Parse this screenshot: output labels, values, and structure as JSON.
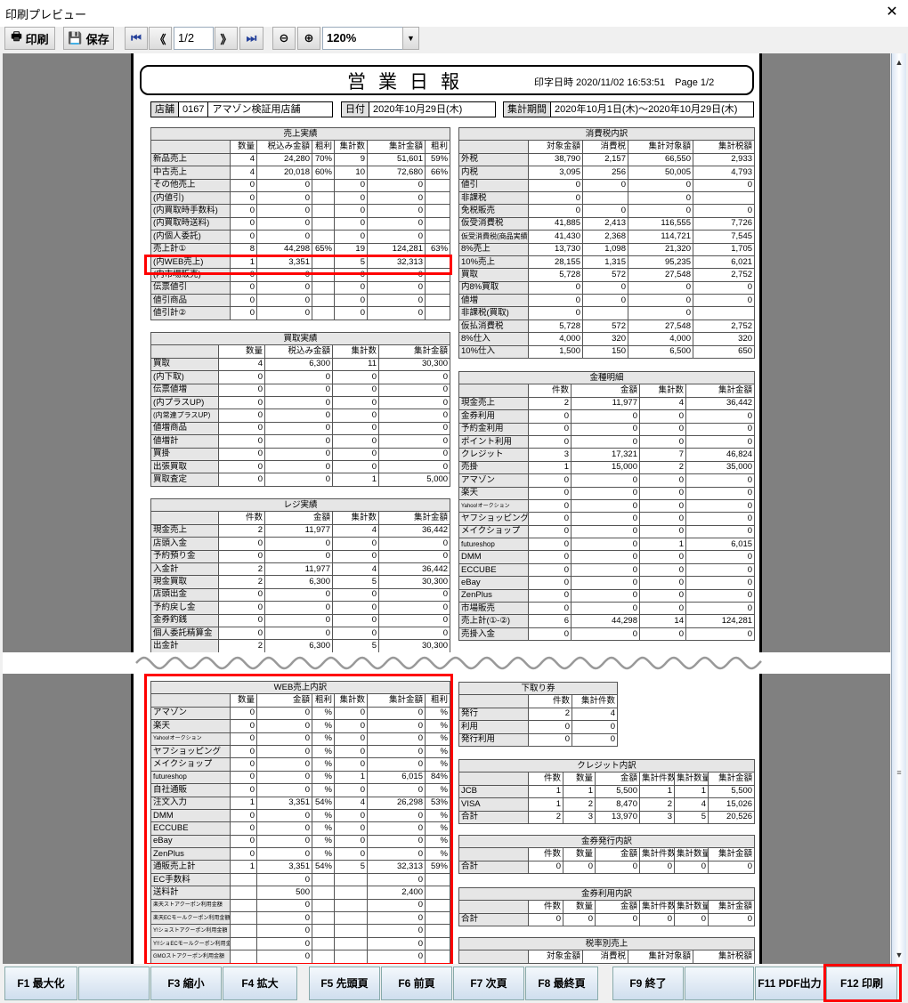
{
  "window": {
    "title": "印刷プレビュー",
    "close_icon": "close-icon"
  },
  "toolbar": {
    "print": "印刷",
    "save": "保存",
    "page": "1/2",
    "zoom": "120%"
  },
  "report": {
    "title": "営業日報",
    "printed": "印字日時 2020/11/02 16:53:51　Page 1/2",
    "store_label": "店舗",
    "store_code": "0167",
    "store_name": "アマゾン検証用店舗",
    "date_label": "日付",
    "date": "2020年10月29日(木)",
    "period_label": "集計期間",
    "period": "2020年10月1日(木)～2020年10月29日(木)"
  },
  "tables": {
    "sales": {
      "title": "売上実績",
      "headers": [
        "",
        "数量",
        "税込み金額",
        "粗利",
        "集計数",
        "集計金額",
        "粗利"
      ],
      "rows": [
        [
          "新品売上",
          "4",
          "24,280",
          "70%",
          "9",
          "51,601",
          "59%"
        ],
        [
          "中古売上",
          "4",
          "20,018",
          "60%",
          "10",
          "72,680",
          "66%"
        ],
        [
          "その他売上",
          "0",
          "0",
          "",
          "0",
          "0",
          ""
        ],
        [
          "(内値引)",
          "0",
          "0",
          "",
          "0",
          "0",
          ""
        ],
        [
          "(内買取時手数料)",
          "0",
          "0",
          "",
          "0",
          "0",
          ""
        ],
        [
          "(内買取時送料)",
          "0",
          "0",
          "",
          "0",
          "0",
          ""
        ],
        [
          "(内個人委託)",
          "0",
          "0",
          "",
          "0",
          "0",
          ""
        ],
        [
          "売上計①",
          "8",
          "44,298",
          "65%",
          "19",
          "124,281",
          "63%"
        ],
        [
          "(内WEB売上)",
          "1",
          "3,351",
          "",
          "5",
          "32,313",
          ""
        ],
        [
          "(内市場販売)",
          "0",
          "0",
          "",
          "0",
          "0",
          ""
        ],
        [
          "伝票値引",
          "0",
          "0",
          "",
          "0",
          "0",
          ""
        ],
        [
          "値引商品",
          "0",
          "0",
          "",
          "0",
          "0",
          ""
        ],
        [
          "値引計②",
          "0",
          "0",
          "",
          "0",
          "0",
          ""
        ]
      ]
    },
    "tax": {
      "title": "消費税内訳",
      "headers": [
        "",
        "対象金額",
        "消費税",
        "集計対象額",
        "集計税額"
      ],
      "rows": [
        [
          "外税",
          "38,790",
          "2,157",
          "66,550",
          "2,933"
        ],
        [
          "内税",
          "3,095",
          "256",
          "50,005",
          "4,793"
        ],
        [
          "値引",
          "0",
          "0",
          "0",
          "0"
        ],
        [
          "非課税",
          "0",
          "",
          "0",
          ""
        ],
        [
          "免税販売",
          "0",
          "0",
          "0",
          "0"
        ],
        [
          "仮受消費税",
          "41,885",
          "2,413",
          "116,555",
          "7,726"
        ],
        [
          "仮受消費税(商品実績)",
          "41,430",
          "2,368",
          "114,721",
          "7,545"
        ],
        [
          "8%売上",
          "13,730",
          "1,098",
          "21,320",
          "1,705"
        ],
        [
          "10%売上",
          "28,155",
          "1,315",
          "95,235",
          "6,021"
        ],
        [
          "買取",
          "5,728",
          "572",
          "27,548",
          "2,752"
        ],
        [
          "内8%買取",
          "0",
          "0",
          "0",
          "0"
        ],
        [
          "値増",
          "0",
          "0",
          "0",
          "0"
        ],
        [
          "非課税(買取)",
          "0",
          "",
          "0",
          ""
        ],
        [
          "仮払消費税",
          "5,728",
          "572",
          "27,548",
          "2,752"
        ],
        [
          "8%仕入",
          "4,000",
          "320",
          "4,000",
          "320"
        ],
        [
          "10%仕入",
          "1,500",
          "150",
          "6,500",
          "650"
        ]
      ]
    },
    "purchase": {
      "title": "買取実績",
      "headers": [
        "",
        "数量",
        "税込み金額",
        "集計数",
        "集計金額"
      ],
      "rows": [
        [
          "買取",
          "4",
          "6,300",
          "11",
          "30,300"
        ],
        [
          "(内下取)",
          "0",
          "0",
          "0",
          "0"
        ],
        [
          "伝票値増",
          "0",
          "0",
          "0",
          "0"
        ],
        [
          "(内プラスUP)",
          "0",
          "0",
          "0",
          "0"
        ],
        [
          "(内常連プラスUP)",
          "0",
          "0",
          "0",
          "0"
        ],
        [
          "値増商品",
          "0",
          "0",
          "0",
          "0"
        ],
        [
          "値増計",
          "0",
          "0",
          "0",
          "0"
        ],
        [
          "買掛",
          "0",
          "0",
          "0",
          "0"
        ],
        [
          "出張買取",
          "0",
          "0",
          "0",
          "0"
        ],
        [
          "買取査定",
          "0",
          "0",
          "1",
          "5,000"
        ]
      ]
    },
    "register": {
      "title": "レジ実績",
      "headers": [
        "",
        "件数",
        "金額",
        "集計数",
        "集計金額"
      ],
      "rows": [
        [
          "現金売上",
          "2",
          "11,977",
          "4",
          "36,442"
        ],
        [
          "店頭入金",
          "0",
          "0",
          "0",
          "0"
        ],
        [
          "予約預り金",
          "0",
          "0",
          "0",
          "0"
        ],
        [
          "入金計",
          "2",
          "11,977",
          "4",
          "36,442"
        ],
        [
          "現金買取",
          "2",
          "6,300",
          "5",
          "30,300"
        ],
        [
          "店頭出金",
          "0",
          "0",
          "0",
          "0"
        ],
        [
          "予約戻し金",
          "0",
          "0",
          "0",
          "0"
        ],
        [
          "金券釣銭",
          "0",
          "0",
          "0",
          "0"
        ],
        [
          "個人委託精算金",
          "0",
          "0",
          "0",
          "0"
        ],
        [
          "出金計",
          "2",
          "6,300",
          "5",
          "30,300"
        ]
      ]
    },
    "payment": {
      "title": "金種明細",
      "headers": [
        "",
        "件数",
        "金額",
        "集計数",
        "集計金額"
      ],
      "rows": [
        [
          "現金売上",
          "2",
          "11,977",
          "4",
          "36,442"
        ],
        [
          "金券利用",
          "0",
          "0",
          "0",
          "0"
        ],
        [
          "予約金利用",
          "0",
          "0",
          "0",
          "0"
        ],
        [
          "ポイント利用",
          "0",
          "0",
          "0",
          "0"
        ],
        [
          "クレジット",
          "3",
          "17,321",
          "7",
          "46,824"
        ],
        [
          "売掛",
          "1",
          "15,000",
          "2",
          "35,000"
        ],
        [
          "アマゾン",
          "0",
          "0",
          "0",
          "0"
        ],
        [
          "楽天",
          "0",
          "0",
          "0",
          "0"
        ],
        [
          "Yahoo!オークション",
          "0",
          "0",
          "0",
          "0"
        ],
        [
          "ヤフショッピング",
          "0",
          "0",
          "0",
          "0"
        ],
        [
          "メイクショップ",
          "0",
          "0",
          "0",
          "0"
        ],
        [
          "futureshop",
          "0",
          "0",
          "1",
          "6,015"
        ],
        [
          "DMM",
          "0",
          "0",
          "0",
          "0"
        ],
        [
          "ECCUBE",
          "0",
          "0",
          "0",
          "0"
        ],
        [
          "eBay",
          "0",
          "0",
          "0",
          "0"
        ],
        [
          "ZenPlus",
          "0",
          "0",
          "0",
          "0"
        ],
        [
          "市場販売",
          "0",
          "0",
          "0",
          "0"
        ],
        [
          "売上計(①-②)",
          "6",
          "44,298",
          "14",
          "124,281"
        ],
        [
          "売掛入金",
          "0",
          "0",
          "0",
          "0"
        ]
      ]
    },
    "web": {
      "title": "WEB売上内訳",
      "headers": [
        "",
        "数量",
        "金額",
        "粗利",
        "集計数",
        "集計金額",
        "粗利"
      ],
      "rows": [
        [
          "アマゾン",
          "0",
          "0",
          "%",
          "0",
          "0",
          "%"
        ],
        [
          "楽天",
          "0",
          "0",
          "%",
          "0",
          "0",
          "%"
        ],
        [
          "Yahoo!オークション",
          "0",
          "0",
          "%",
          "0",
          "0",
          "%"
        ],
        [
          "ヤフショッピング",
          "0",
          "0",
          "%",
          "0",
          "0",
          "%"
        ],
        [
          "メイクショップ",
          "0",
          "0",
          "%",
          "0",
          "0",
          "%"
        ],
        [
          "futureshop",
          "0",
          "0",
          "%",
          "1",
          "6,015",
          "84%"
        ],
        [
          "自社通販",
          "0",
          "0",
          "%",
          "0",
          "0",
          "%"
        ],
        [
          "注文入力",
          "1",
          "3,351",
          "54%",
          "4",
          "26,298",
          "53%"
        ],
        [
          "DMM",
          "0",
          "0",
          "%",
          "0",
          "0",
          "%"
        ],
        [
          "ECCUBE",
          "0",
          "0",
          "%",
          "0",
          "0",
          "%"
        ],
        [
          "eBay",
          "0",
          "0",
          "%",
          "0",
          "0",
          "%"
        ],
        [
          "ZenPlus",
          "0",
          "0",
          "%",
          "0",
          "0",
          "%"
        ],
        [
          "通販売上計",
          "1",
          "3,351",
          "54%",
          "5",
          "32,313",
          "59%"
        ],
        [
          "EC手数料",
          "",
          "0",
          "",
          "",
          "0",
          ""
        ],
        [
          "送料計",
          "",
          "500",
          "",
          "",
          "2,400",
          ""
        ],
        [
          "楽天ストアクーポン利用金額",
          "",
          "0",
          "",
          "",
          "0",
          ""
        ],
        [
          "楽天ECモールクーポン利用金額",
          "",
          "0",
          "",
          "",
          "0",
          ""
        ],
        [
          "Y!ショストアクーポン利用金額",
          "",
          "0",
          "",
          "",
          "0",
          ""
        ],
        [
          "Y!!ショECモールクーポン利用金額",
          "",
          "0",
          "",
          "",
          "0",
          ""
        ],
        [
          "GMOストアクーポン利用金額",
          "",
          "0",
          "",
          "",
          "0",
          ""
        ]
      ]
    },
    "tradein": {
      "title": "下取り券",
      "headers": [
        "",
        "件数",
        "集計件数"
      ],
      "rows": [
        [
          "発行",
          "2",
          "4"
        ],
        [
          "利用",
          "0",
          "0"
        ],
        [
          "発行利用",
          "0",
          "0"
        ]
      ]
    },
    "credit": {
      "title": "クレジット内訳",
      "headers": [
        "",
        "件数",
        "数量",
        "金額",
        "集計件数",
        "集計数量",
        "集計金額"
      ],
      "rows": [
        [
          "JCB",
          "1",
          "1",
          "5,500",
          "1",
          "1",
          "5,500"
        ],
        [
          "VISA",
          "1",
          "2",
          "8,470",
          "2",
          "4",
          "15,026"
        ],
        [
          "合計",
          "2",
          "3",
          "13,970",
          "3",
          "5",
          "20,526"
        ]
      ]
    },
    "voucher_issue": {
      "title": "金券発行内訳",
      "headers": [
        "",
        "件数",
        "数量",
        "金額",
        "集計件数",
        "集計数量",
        "集計金額"
      ],
      "rows": [
        [
          "合計",
          "0",
          "0",
          "0",
          "0",
          "0",
          "0"
        ]
      ]
    },
    "voucher_use": {
      "title": "金券利用内訳",
      "headers": [
        "",
        "件数",
        "数量",
        "金額",
        "集計件数",
        "集計数量",
        "集計金額"
      ],
      "rows": [
        [
          "合計",
          "0",
          "0",
          "0",
          "0",
          "0",
          "0"
        ]
      ]
    },
    "tax_rate": {
      "title": "税率別売上",
      "headers": [
        "",
        "対象金額",
        "消費税",
        "集計対象額",
        "集計税額"
      ],
      "rows": []
    }
  },
  "footer": {
    "f1": "F1 最大化",
    "f3": "F3 縮小",
    "f4": "F4 拡大",
    "f5": "F5 先頭頁",
    "f6": "F6 前頁",
    "f7": "F7 次頁",
    "f8": "F8 最終頁",
    "f9": "F9 終了",
    "f11": "F11 PDF出力",
    "f12": "F12 印刷"
  },
  "colors": {
    "highlight": "#ff0000",
    "preview_bg": "#808080",
    "label_bg": "#e6e6e6"
  }
}
